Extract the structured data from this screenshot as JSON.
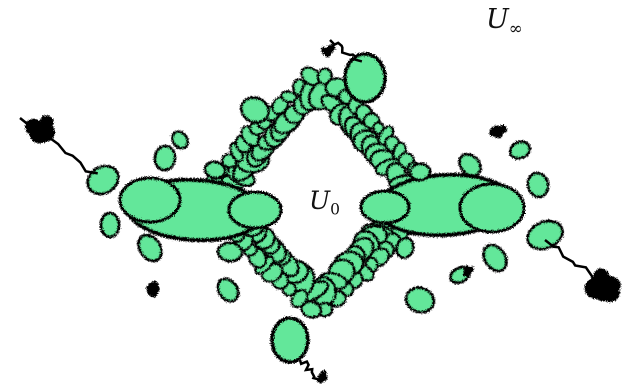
{
  "labels": {
    "outer_region": {
      "letter": "U",
      "subscript": "∞"
    },
    "inner_region": {
      "letter": "U",
      "subscript": "0"
    }
  },
  "colors": {
    "background": "#ffffff",
    "fill": "#63e79a",
    "outline": "#000000"
  }
}
